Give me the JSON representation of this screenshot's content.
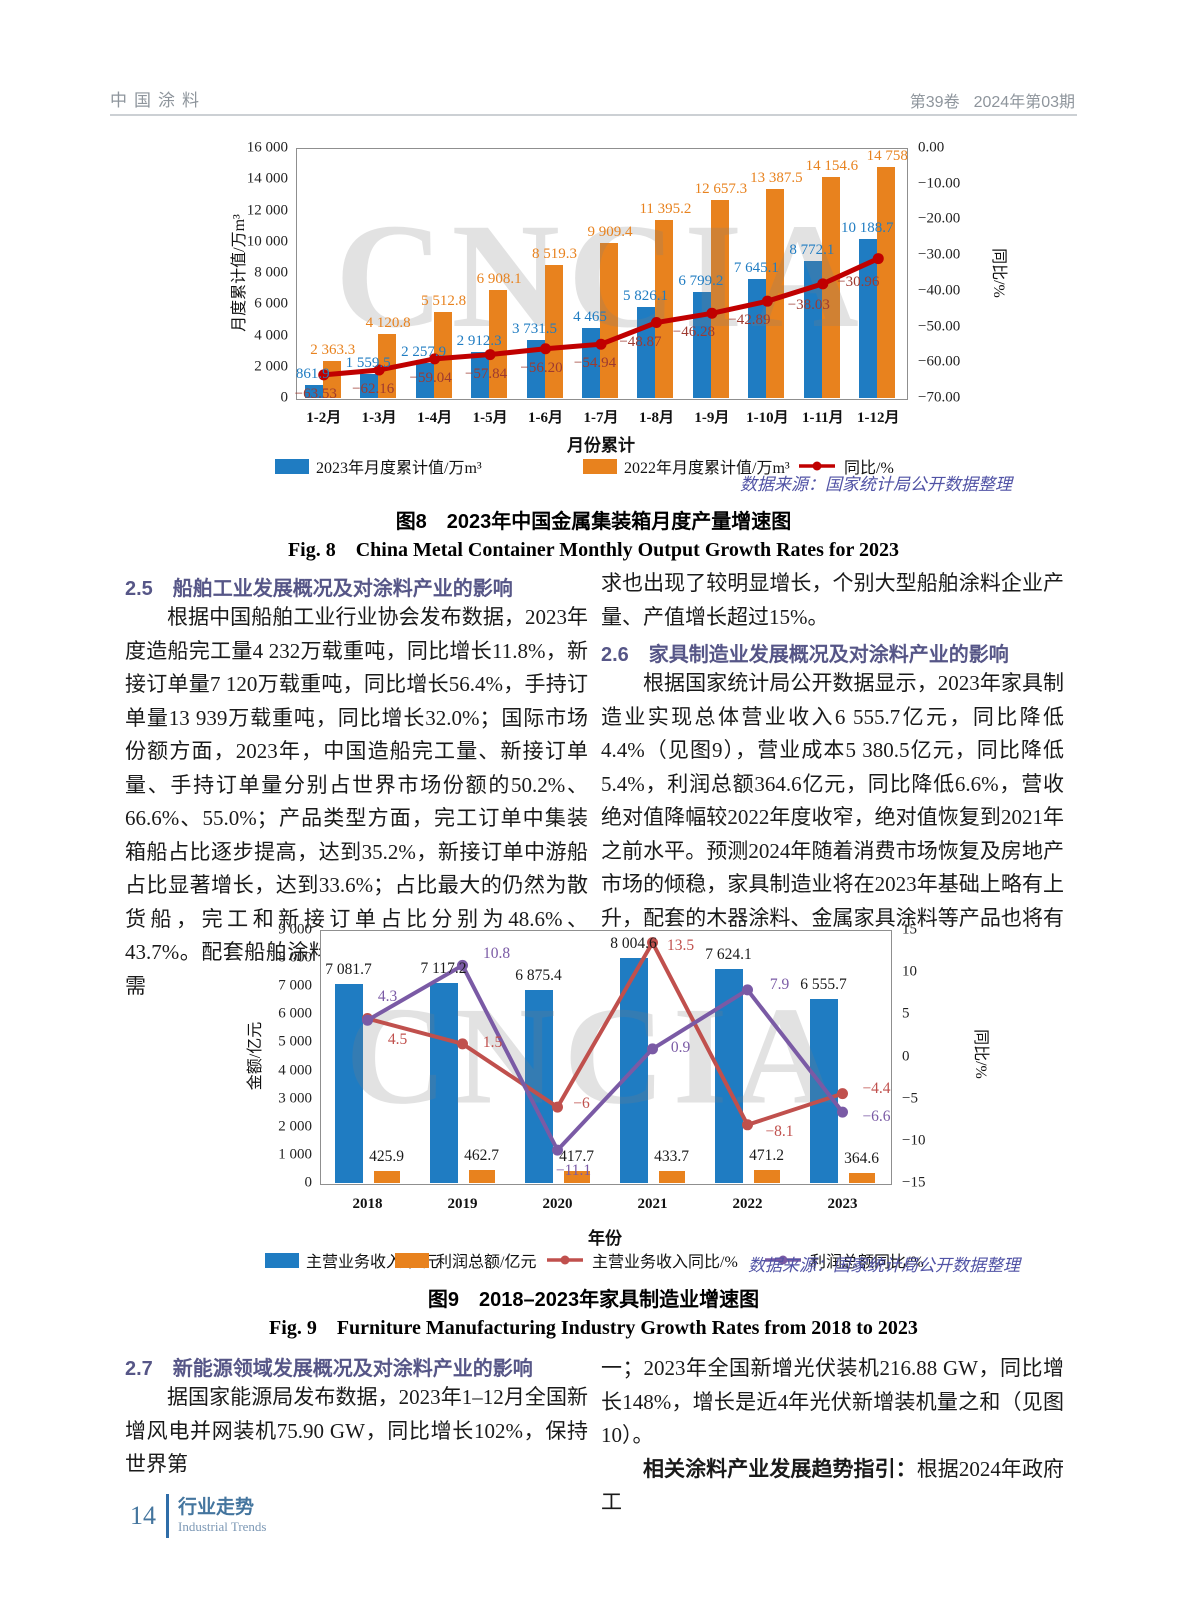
{
  "header": {
    "journal": "中国涂料",
    "volume": "第39卷",
    "issue": "2024年第03期"
  },
  "watermark": "CNCIA",
  "chart_data": [
    {
      "id": "fig8",
      "type": "bar",
      "title_cn": "图8　2023年中国金属集装箱月度产量增速图",
      "title_en": "Fig. 8　China Metal Container Monthly Output Growth Rates for 2023",
      "source": "数据来源：国家统计局公开数据整理",
      "categories": [
        "1-2月",
        "1-3月",
        "1-4月",
        "1-5月",
        "1-6月",
        "1-7月",
        "1-8月",
        "1-9月",
        "1-10月",
        "1-11月",
        "1-12月"
      ],
      "xlabel": "月份累计",
      "ylabel": "月度累计值/万m³",
      "y2label": "同比/%",
      "ylim": [
        0,
        16000
      ],
      "y2lim": [
        -70,
        0
      ],
      "grid": false,
      "legend_position": "bottom",
      "yticks": [
        [
          0,
          "0"
        ],
        [
          2000,
          "2 000"
        ],
        [
          4000,
          "4 000"
        ],
        [
          6000,
          "6 000"
        ],
        [
          8000,
          "8 000"
        ],
        [
          10000,
          "10 000"
        ],
        [
          12000,
          "12 000"
        ],
        [
          14000,
          "14 000"
        ],
        [
          16000,
          "16 000"
        ]
      ],
      "y2ticks": [
        [
          0,
          "0.00"
        ],
        [
          -10,
          "−10.00"
        ],
        [
          -20,
          "−20.00"
        ],
        [
          -30,
          "−30.00"
        ],
        [
          -40,
          "−40.00"
        ],
        [
          -50,
          "−50.00"
        ],
        [
          -60,
          "−60.00"
        ],
        [
          -70,
          "−70.00"
        ]
      ],
      "series": [
        {
          "name": "2023年月度累计值/万m³",
          "type": "bar",
          "axis": "y1",
          "color": "#1f7cc2",
          "label_color": "#1f7cc2",
          "values": [
            861.9,
            1559.5,
            2257.9,
            2912.3,
            3731.5,
            4465,
            5826.1,
            6799.2,
            7645.1,
            8772.1,
            10188.7
          ],
          "labels": [
            "861.9",
            "1 559.5",
            "2 257.9",
            "2 912.3",
            "3 731.5",
            "4 465",
            "5 826.1",
            "6 799.2",
            "7 645.1",
            "8 772.1",
            "10 188.7"
          ]
        },
        {
          "name": "2022年月度累计值/万m³",
          "type": "bar",
          "axis": "y1",
          "color": "#e8821e",
          "label_color": "#e8821e",
          "values": [
            2363.3,
            4120.8,
            5512.8,
            6908.1,
            8519.3,
            9909.4,
            11395.2,
            12657.3,
            13387.5,
            14154.6,
            14758
          ],
          "labels": [
            "2 363.3",
            "4 120.8",
            "5 512.8",
            "6 908.1",
            "8 519.3",
            "9 909.4",
            "11 395.2",
            "12 657.3",
            "13 387.5",
            "14 154.6",
            "14 758"
          ]
        },
        {
          "name": "同比/%",
          "type": "line",
          "axis": "y2",
          "color": "#c00000",
          "label_color": "#9e3a30",
          "values": [
            -63.53,
            -62.16,
            -59.04,
            -57.84,
            -56.2,
            -54.94,
            -48.87,
            -46.28,
            -42.89,
            -38.03,
            -30.96
          ],
          "labels": [
            "−63.53",
            "−62.16",
            "−59.04",
            "−57.84",
            "−56.20",
            "−54.94",
            "−48.87",
            "−46.28",
            "−42.89",
            "−38.03",
            "−30.96"
          ]
        }
      ]
    },
    {
      "id": "fig9",
      "type": "bar",
      "title_cn": "图9　2018–2023年家具制造业增速图",
      "title_en": "Fig. 9　Furniture Manufacturing Industry Growth Rates from 2018 to 2023",
      "source": "数据来源：国家统计局公开数据整理",
      "categories": [
        "2018",
        "2019",
        "2020",
        "2021",
        "2022",
        "2023"
      ],
      "xlabel": "年份",
      "ylabel": "金额/亿元",
      "y2label": "同比/%",
      "ylim": [
        0,
        9000
      ],
      "y2lim": [
        -15,
        15
      ],
      "grid": false,
      "legend_position": "bottom",
      "yticks": [
        [
          0,
          "0"
        ],
        [
          1000,
          "1 000"
        ],
        [
          2000,
          "2 000"
        ],
        [
          3000,
          "3 000"
        ],
        [
          4000,
          "4 000"
        ],
        [
          5000,
          "5 000"
        ],
        [
          6000,
          "6 000"
        ],
        [
          7000,
          "7 000"
        ],
        [
          8000,
          "8 000"
        ],
        [
          9000,
          "9 000"
        ]
      ],
      "y2ticks": [
        [
          15,
          "15"
        ],
        [
          10,
          "10"
        ],
        [
          5,
          "5"
        ],
        [
          0,
          "0"
        ],
        [
          -5,
          "−5"
        ],
        [
          -10,
          "−10"
        ],
        [
          -15,
          "−15"
        ]
      ],
      "series": [
        {
          "name": "主营业务收入/亿元",
          "type": "bar",
          "axis": "y1",
          "color": "#1f7cc2",
          "label_color": "#1a1a1a",
          "values": [
            7081.7,
            7117.2,
            6875.4,
            8004.6,
            7624.1,
            6555.7
          ],
          "labels": [
            "7 081.7",
            "7 117.2",
            "6 875.4",
            "8 004.6",
            "7 624.1",
            "6 555.7"
          ]
        },
        {
          "name": "利润总额/亿元",
          "type": "bar",
          "axis": "y1",
          "color": "#e8821e",
          "label_color": "#1a1a1a",
          "values": [
            425.9,
            462.7,
            417.7,
            433.7,
            471.2,
            364.6
          ],
          "labels": [
            "425.9",
            "462.7",
            "417.7",
            "433.7",
            "471.2",
            "364.6"
          ]
        },
        {
          "name": "主营业务收入同比/%",
          "type": "line",
          "axis": "y2",
          "color": "#c0504d",
          "label_color": "#c0504d",
          "values": [
            4.5,
            1.5,
            -6,
            13.5,
            -8.1,
            -4.4
          ],
          "labels": [
            "4.5",
            "1.5",
            "−6",
            "13.5",
            "−8.1",
            "−4.4"
          ]
        },
        {
          "name": "利润总额同比/%",
          "type": "line",
          "axis": "y2",
          "color": "#7a5aa5",
          "label_color": "#7a5aa5",
          "values": [
            4.3,
            10.8,
            -11.1,
            0.9,
            7.9,
            -6.6
          ],
          "labels": [
            "4.3",
            "10.8",
            "−11.1",
            "0.9",
            "7.9",
            "−6.6"
          ]
        }
      ]
    }
  ],
  "sections": {
    "s25": {
      "heading": "2.5　船舶工业发展概况及对涂料产业的影响",
      "para": "根据中国船舶工业行业协会发布数据，2023年度造船完工量4 232万载重吨，同比增长11.8%，新接订单量7 120万载重吨，同比增长56.4%，手持订单量13 939万载重吨，同比增长32.0%；国际市场份额方面，2023年，中国造船完工量、新接订单量、手持订单量分别占世界市场份额的50.2%、66.6%、55.0%；产品类型方面，完工订单中集装箱船占比逐步提高，达到35.2%，新接订单中游船占比显著增长，达到33.6%；占比最大的仍然为散货船，完工和新接订单占比分别为48.6%、43.7%。配套船舶涂料产品根据下游船舶生产订单需"
    },
    "s26": {
      "cont": "求也出现了较明显增长，个别大型船舶涂料企业产量、产值增长超过15%。",
      "heading": "2.6　家具制造业发展概况及对涂料产业的影响",
      "para": "根据国家统计局公开数据显示，2023年家具制造业实现总体营业收入6 555.7亿元，同比降低4.4%（见图9），营业成本5 380.5亿元，同比降低5.4%，利润总额364.6亿元，同比降低6.6%，营收绝对值降幅较2022年度收窄，绝对值恢复到2021年之前水平。预测2024年随着消费市场恢复及房地产市场的倾稳，家具制造业将在2023年基础上略有上升，配套的木器涂料、金属家具涂料等产品也将有小幅增长。"
    },
    "s27": {
      "heading": "2.7　新能源领域发展概况及对涂料产业的影响",
      "para_left": "据国家能源局发布数据，2023年1–12月全国新增风电并网装机75.90 GW，同比增长102%，保持世界第",
      "para_right_1": "一；2023年全国新增光伏装机216.88 GW，同比增长148%，增长是近4年光伏新增装机量之和（见图10）。",
      "para_right_2_lead": "相关涂料产业发展趋势指引：",
      "para_right_2": "根据2024年政府工"
    }
  },
  "footer": {
    "page": "14",
    "label_cn": "行业走势",
    "label_en": "Industrial Trends"
  }
}
